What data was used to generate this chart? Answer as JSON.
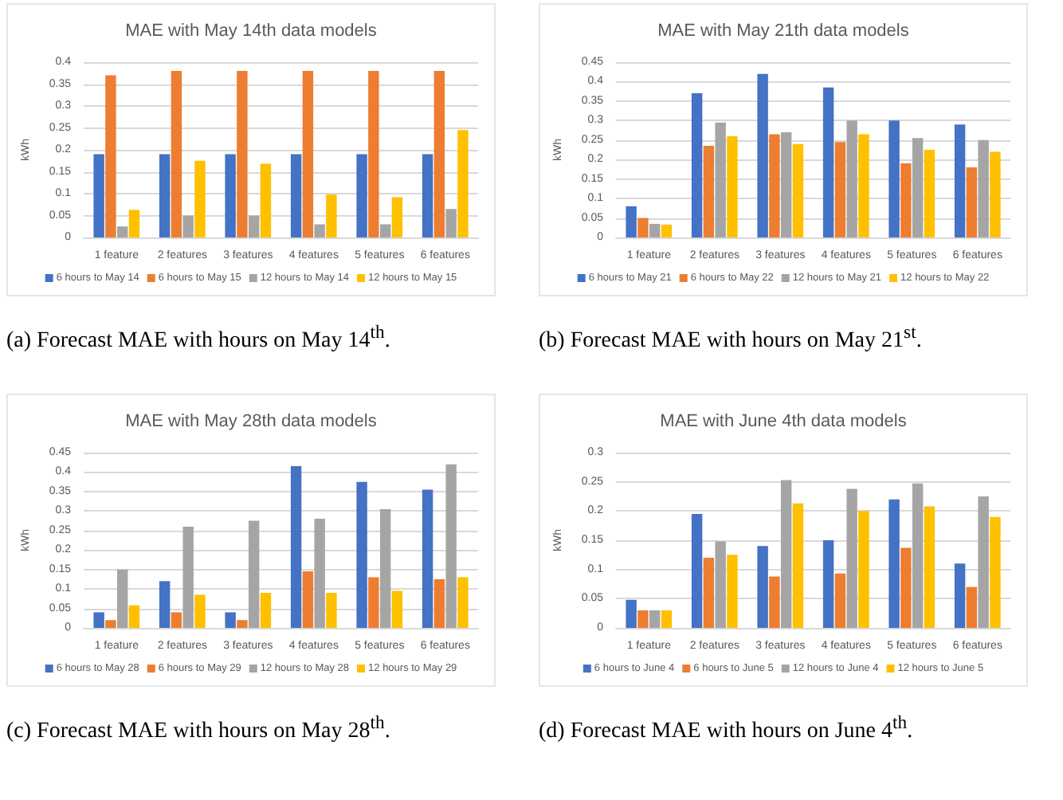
{
  "chart_data": [
    {
      "type": "bar",
      "title": "MAE with May 14th data models",
      "ylabel": "kWh",
      "categories": [
        "1 feature",
        "2 features",
        "3 features",
        "4 features",
        "5 features",
        "6 features"
      ],
      "ylim": [
        0,
        0.4
      ],
      "yticks": [
        0,
        0.05,
        0.1,
        0.15,
        0.2,
        0.25,
        0.3,
        0.35,
        0.4
      ],
      "grid": "y",
      "legend": "bottom",
      "annotations": [
        "(a) Forecast MAE with hours on May 14$^{th}$."
      ],
      "series": [
        {
          "name": "6 hours to May 14",
          "color": "#4472c4",
          "values": [
            0.19,
            0.19,
            0.19,
            0.19,
            0.19,
            0.19
          ]
        },
        {
          "name": "6 hours to May 15",
          "color": "#ed7d31",
          "values": [
            0.37,
            0.38,
            0.38,
            0.38,
            0.38,
            0.38
          ]
        },
        {
          "name": "12 hours to May 14",
          "color": "#a5a5a5",
          "values": [
            0.025,
            0.05,
            0.05,
            0.03,
            0.03,
            0.065
          ]
        },
        {
          "name": "12 hours to May 15",
          "color": "#ffc000",
          "values": [
            0.063,
            0.175,
            0.168,
            0.098,
            0.092,
            0.245
          ]
        }
      ]
    },
    {
      "type": "bar",
      "title": "MAE with May 21th data models",
      "ylabel": "kWh",
      "categories": [
        "1 feature",
        "2 features",
        "3 features",
        "4 features",
        "5 features",
        "6 features"
      ],
      "ylim": [
        0,
        0.45
      ],
      "yticks": [
        0,
        0.05,
        0.1,
        0.15,
        0.2,
        0.25,
        0.3,
        0.35,
        0.4,
        0.45
      ],
      "grid": "y",
      "legend": "bottom",
      "annotations": [
        "(b) Forecast MAE with hours on May 21$^{st}$."
      ],
      "series": [
        {
          "name": "6 hours to May 21",
          "color": "#4472c4",
          "values": [
            0.08,
            0.37,
            0.42,
            0.385,
            0.3,
            0.29
          ]
        },
        {
          "name": "6 hours to May 22",
          "color": "#ed7d31",
          "values": [
            0.05,
            0.235,
            0.265,
            0.245,
            0.19,
            0.18
          ]
        },
        {
          "name": "12 hours to May 21",
          "color": "#a5a5a5",
          "values": [
            0.035,
            0.295,
            0.27,
            0.3,
            0.255,
            0.25
          ]
        },
        {
          "name": "12 hours to May 22",
          "color": "#ffc000",
          "values": [
            0.033,
            0.26,
            0.24,
            0.265,
            0.225,
            0.22
          ]
        }
      ]
    },
    {
      "type": "bar",
      "title": "MAE with May 28th data models",
      "ylabel": "kWh",
      "categories": [
        "1 feature",
        "2 features",
        "3 features",
        "4 features",
        "5 features",
        "6 features"
      ],
      "ylim": [
        0,
        0.45
      ],
      "yticks": [
        0,
        0.05,
        0.1,
        0.15,
        0.2,
        0.25,
        0.3,
        0.35,
        0.4,
        0.45
      ],
      "grid": "y",
      "legend": "bottom",
      "annotations": [
        "(c) Forecast MAE with hours on May 28$^{th}$."
      ],
      "series": [
        {
          "name": "6 hours to May 28",
          "color": "#4472c4",
          "values": [
            0.04,
            0.12,
            0.04,
            0.415,
            0.375,
            0.355
          ]
        },
        {
          "name": "6 hours to May 29",
          "color": "#ed7d31",
          "values": [
            0.02,
            0.04,
            0.02,
            0.145,
            0.13,
            0.125
          ]
        },
        {
          "name": "12 hours to May 28",
          "color": "#a5a5a5",
          "values": [
            0.15,
            0.26,
            0.275,
            0.28,
            0.305,
            0.42
          ]
        },
        {
          "name": "12 hours to May 29",
          "color": "#ffc000",
          "values": [
            0.058,
            0.085,
            0.09,
            0.09,
            0.095,
            0.13
          ]
        }
      ]
    },
    {
      "type": "bar",
      "title": "MAE with June 4th data models",
      "ylabel": "kWh",
      "categories": [
        "1 feature",
        "2 features",
        "3 features",
        "4 features",
        "5 features",
        "6 features"
      ],
      "ylim": [
        0,
        0.3
      ],
      "yticks": [
        0,
        0.05,
        0.1,
        0.15,
        0.2,
        0.25,
        0.3
      ],
      "grid": "y",
      "legend": "bottom",
      "annotations": [
        "(d) Forecast MAE with hours on June 4$^{th}$."
      ],
      "series": [
        {
          "name": "6 hours to June 4",
          "color": "#4472c4",
          "values": [
            0.048,
            0.195,
            0.14,
            0.15,
            0.22,
            0.11
          ]
        },
        {
          "name": "6 hours to June 5",
          "color": "#ed7d31",
          "values": [
            0.03,
            0.12,
            0.088,
            0.093,
            0.137,
            0.07
          ]
        },
        {
          "name": "12 hours to June 4",
          "color": "#a5a5a5",
          "values": [
            0.03,
            0.148,
            0.253,
            0.238,
            0.247,
            0.225
          ]
        },
        {
          "name": "12 hours to June 5",
          "color": "#ffc000",
          "values": [
            0.03,
            0.125,
            0.213,
            0.2,
            0.208,
            0.19
          ]
        }
      ]
    }
  ]
}
